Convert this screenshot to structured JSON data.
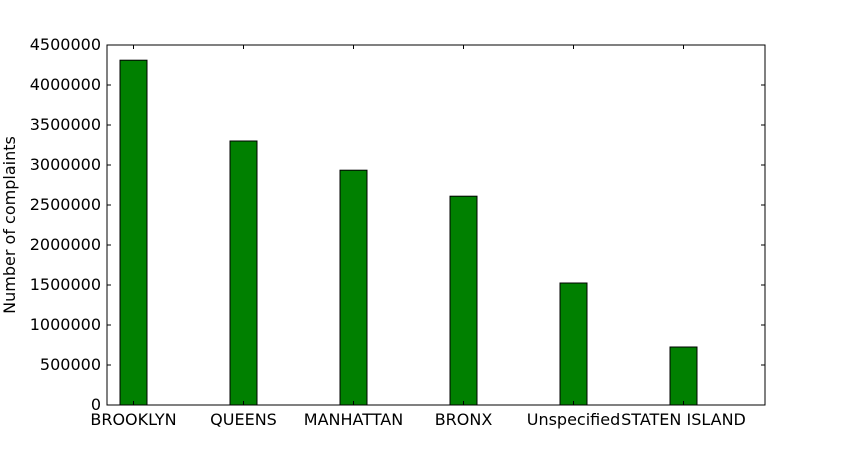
{
  "chart_data": {
    "type": "bar",
    "categories": [
      "BROOKLYN",
      "QUEENS",
      "MANHATTAN",
      "BRONX",
      "Unspecified",
      "STATEN ISLAND"
    ],
    "values": [
      4310000,
      3300000,
      2935000,
      2610000,
      1525000,
      725000
    ],
    "title": "",
    "xlabel": "",
    "ylabel": "Number of complaints",
    "ylim": [
      0,
      4500000
    ],
    "yticks": [
      0,
      500000,
      1000000,
      1500000,
      2000000,
      2500000,
      3000000,
      3500000,
      4000000,
      4500000
    ],
    "ytick_labels": [
      "0",
      "500000",
      "1000000",
      "1500000",
      "2000000",
      "2500000",
      "3000000",
      "3500000",
      "4000000",
      "4500000"
    ],
    "bar_color": "#008000",
    "edge_color": "#000000",
    "grid": false
  }
}
